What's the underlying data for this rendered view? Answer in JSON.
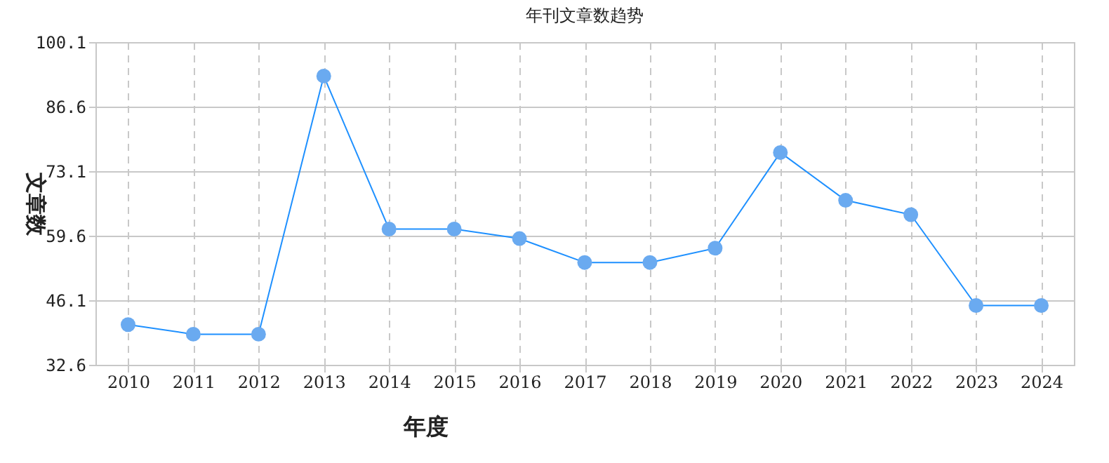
{
  "chart_data": {
    "type": "line",
    "title": "年刊文章数趋势",
    "xlabel": "年度",
    "ylabel": "文章数",
    "categories": [
      "2010",
      "2011",
      "2012",
      "2013",
      "2014",
      "2015",
      "2016",
      "2017",
      "2018",
      "2019",
      "2020",
      "2021",
      "2022",
      "2023",
      "2024"
    ],
    "series": [
      {
        "color": "#1e90ff",
        "values": [
          41,
          39,
          39,
          93,
          61,
          61,
          59,
          54,
          54,
          57,
          77,
          67,
          64,
          45,
          45
        ]
      }
    ],
    "ylim": [
      32.6,
      100.1
    ],
    "yticks": [
      32.6,
      46.1,
      59.6,
      73.1,
      86.6,
      100.1
    ],
    "grid": true,
    "marker": "circle",
    "line_style": "solid"
  }
}
